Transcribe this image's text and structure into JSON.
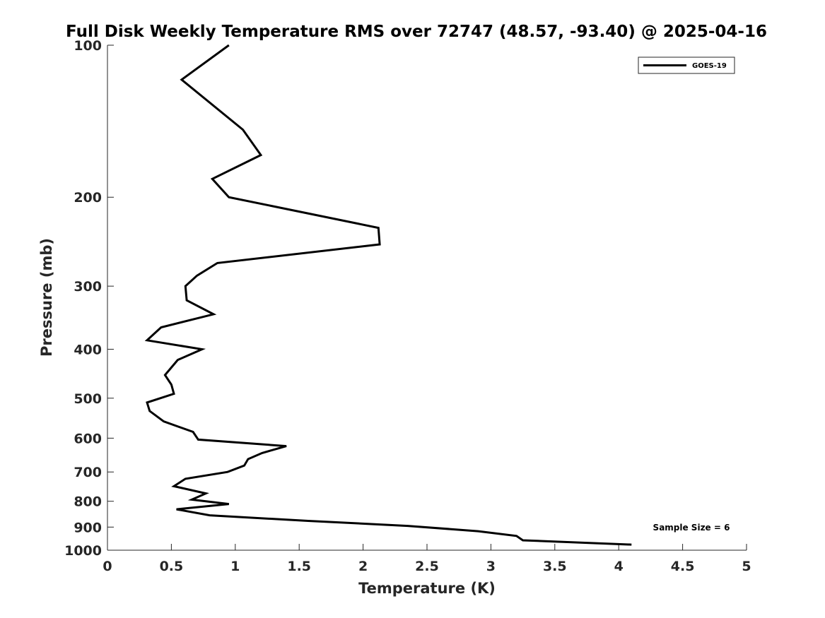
{
  "chart_data": {
    "type": "line",
    "title": "Full Disk Weekly Temperature RMS over 72747 (48.57, -93.40) @ 2025-04-16",
    "xlabel": "Temperature (K)",
    "ylabel": "Pressure (mb)",
    "xlim": [
      0,
      5
    ],
    "ylim": [
      100,
      1000
    ],
    "y_scale": "log",
    "y_reversed": true,
    "x_ticks": [
      0,
      0.5,
      1,
      1.5,
      2,
      2.5,
      3,
      3.5,
      4,
      4.5,
      5
    ],
    "x_tick_labels": [
      "0",
      "0.5",
      "1",
      "1.5",
      "2",
      "2.5",
      "3",
      "3.5",
      "4",
      "4.5",
      "5"
    ],
    "y_ticks": [
      100,
      200,
      300,
      400,
      500,
      600,
      700,
      800,
      900,
      1000
    ],
    "y_tick_labels": [
      "100",
      "200",
      "300",
      "400",
      "500",
      "600",
      "700",
      "800",
      "900",
      "1000"
    ],
    "grid": false,
    "legend_position": "top-right",
    "annotation": "Sample Size = 6",
    "series": [
      {
        "name": "GOES-19",
        "color": "#000000",
        "points": [
          [
            0.95,
            100
          ],
          [
            0.58,
            117
          ],
          [
            1.06,
            147
          ],
          [
            1.2,
            165
          ],
          [
            0.82,
            184
          ],
          [
            0.95,
            200
          ],
          [
            2.12,
            230
          ],
          [
            2.13,
            248
          ],
          [
            0.86,
            270
          ],
          [
            0.7,
            286
          ],
          [
            0.61,
            300
          ],
          [
            0.62,
            320
          ],
          [
            0.83,
            341
          ],
          [
            0.42,
            362
          ],
          [
            0.31,
            384
          ],
          [
            0.74,
            400
          ],
          [
            0.55,
            420
          ],
          [
            0.45,
            450
          ],
          [
            0.5,
            470
          ],
          [
            0.52,
            490
          ],
          [
            0.31,
            510
          ],
          [
            0.33,
            530
          ],
          [
            0.44,
            556
          ],
          [
            0.67,
            583
          ],
          [
            0.71,
            604
          ],
          [
            1.4,
            622
          ],
          [
            1.21,
            642
          ],
          [
            1.1,
            660
          ],
          [
            1.07,
            680
          ],
          [
            0.94,
            700
          ],
          [
            0.61,
            722
          ],
          [
            0.52,
            747
          ],
          [
            0.77,
            772
          ],
          [
            0.66,
            794
          ],
          [
            0.95,
            810
          ],
          [
            0.54,
            830
          ],
          [
            0.8,
            853
          ],
          [
            1.57,
            875
          ],
          [
            2.35,
            895
          ],
          [
            2.9,
            917
          ],
          [
            3.2,
            937
          ],
          [
            3.25,
            956
          ],
          [
            4.1,
            975
          ]
        ]
      }
    ]
  }
}
